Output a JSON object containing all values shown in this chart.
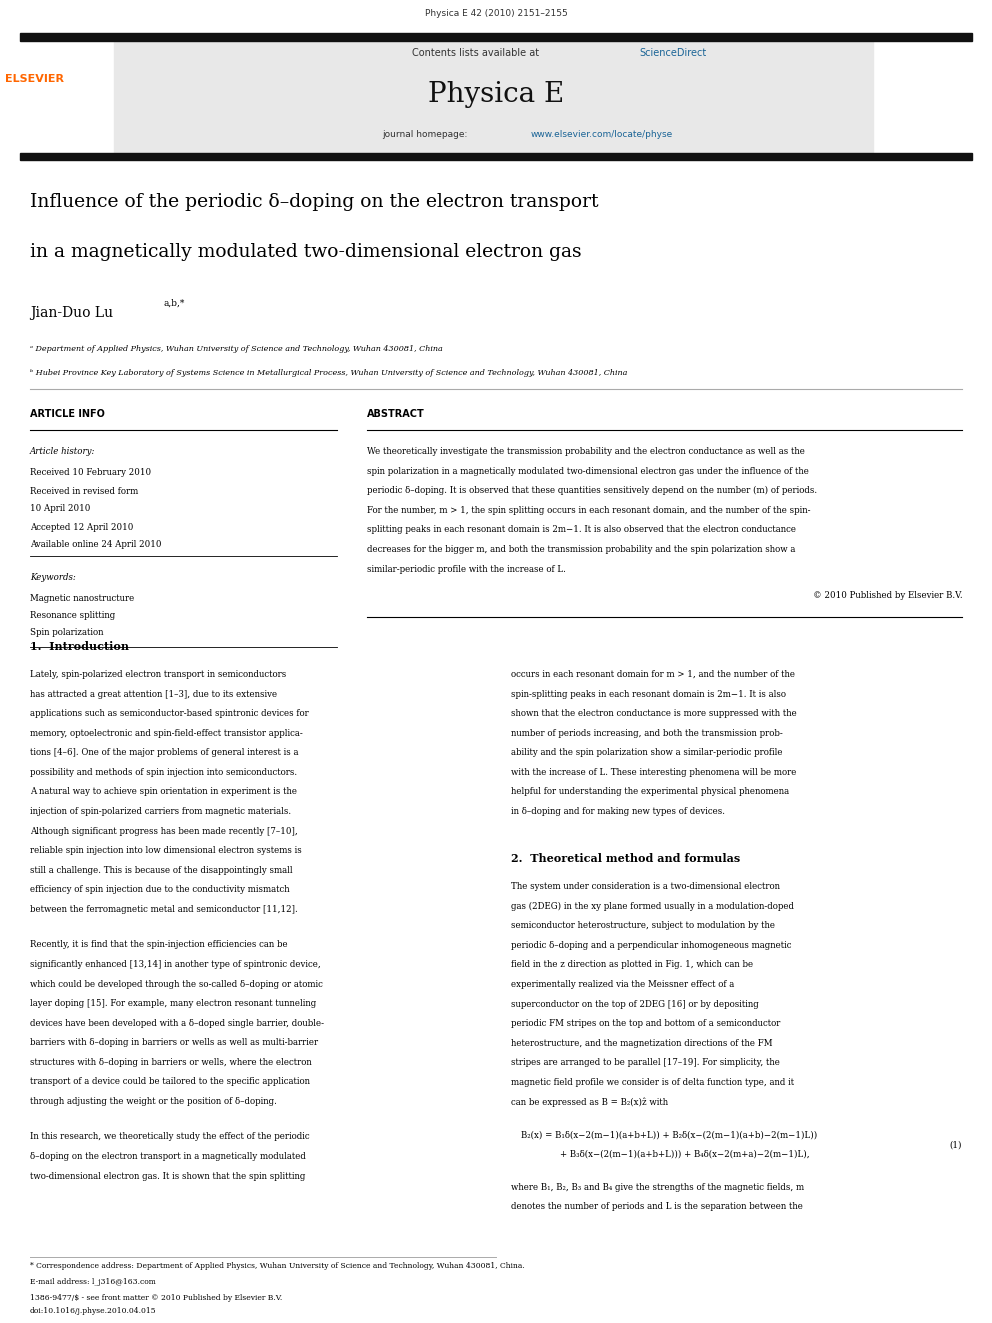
{
  "page_width": 9.92,
  "page_height": 13.23,
  "background_color": "#ffffff",
  "header_journal_line": "Physica E 42 (2010) 2151-2155",
  "journal_name": "Physica E",
  "contents_line": "Contents lists available at ScienceDirect",
  "journal_homepage_plain": "journal homepage: ",
  "journal_homepage_link": "www.elsevier.com/locate/physe",
  "paper_title_line1": "Influence of the periodic d-doping on the electron transport",
  "paper_title_line2": "in a magnetically modulated two-dimensional electron gas",
  "author_name": "Jian-Duo Lu",
  "author_superscript": "a,b,*",
  "affil_a": "a Department of Applied Physics, Wuhan University of Science and Technology, Wuhan 430081, China",
  "affil_b": "b Hubei Province Key Laboratory of Systems Science in Metallurgical Process, Wuhan University of Science and Technology, Wuhan 430081, China",
  "article_info_header": "ARTICLE INFO",
  "abstract_header": "ABSTRACT",
  "article_history_label": "Article history:",
  "received": "Received 10 February 2010",
  "received_revised": "Received in revised form",
  "received_revised2": "10 April 2010",
  "accepted": "Accepted 12 April 2010",
  "available": "Available online 24 April 2010",
  "keywords_label": "Keywords:",
  "keyword1": "Magnetic nanostructure",
  "keyword2": "Resonance splitting",
  "keyword3": "Spin polarization",
  "copyright": "2010 Published by Elsevier B.V.",
  "section1_title": "1.  Introduction",
  "section2_title": "2.  Theoretical method and formulas",
  "footer_correspondence": "* Correspondence address: Department of Applied Physics, Wuhan University of Science and Technology, Wuhan 430081, China.",
  "footer_email": "E-mail address: l_j316@163.com",
  "footer_issn": "1386-9477/$ - see front matter  2010 Published by Elsevier B.V.",
  "footer_doi": "doi:10.1016/j.physe.2010.04.015",
  "header_bg_color": "#e8e8e8",
  "elsevier_orange": "#FF6600",
  "sciencedirect_blue": "#1a6496",
  "link_blue": "#1a6496",
  "title_color": "#000000",
  "body_color": "#000000"
}
